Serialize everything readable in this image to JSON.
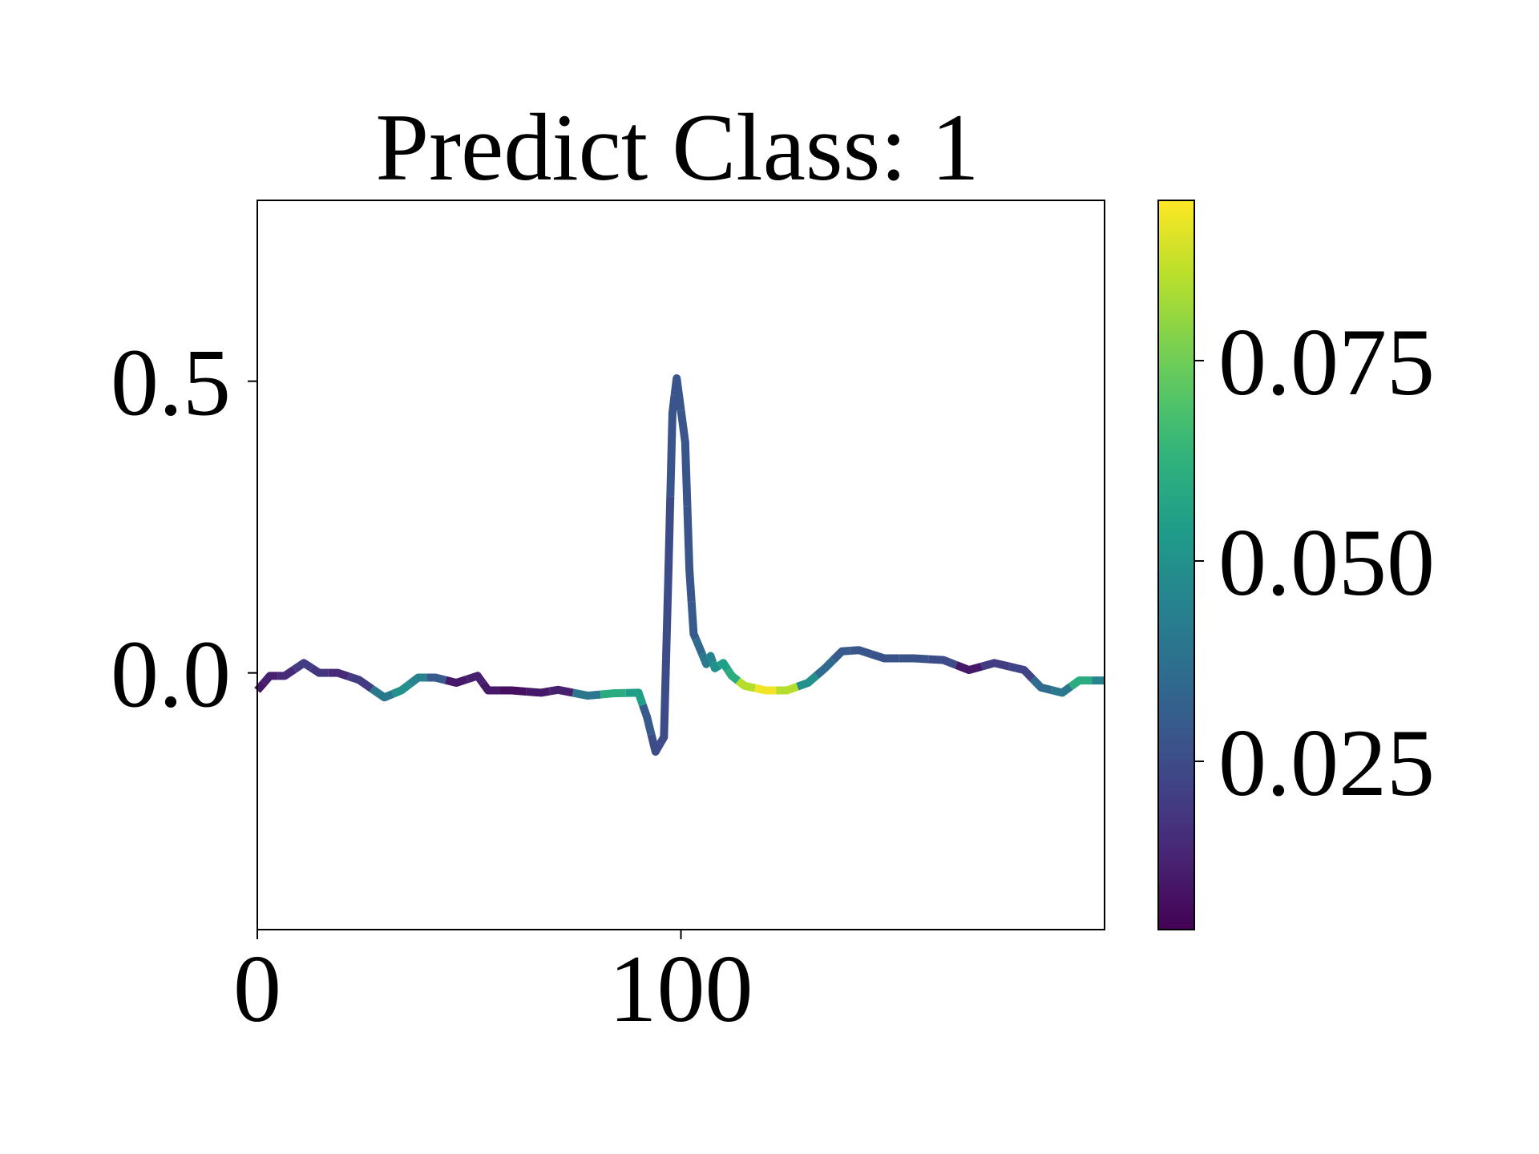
{
  "chart_data": {
    "type": "line",
    "title": "Predict Class: 1",
    "x": [
      0,
      3,
      6.5,
      11,
      14.6,
      19,
      24,
      30,
      34,
      38,
      42,
      47,
      52,
      54.5,
      60,
      67,
      71,
      78,
      84,
      90,
      92,
      94,
      96,
      97,
      98,
      99,
      101,
      102,
      103,
      104,
      106,
      107,
      108,
      110,
      112,
      115,
      120,
      125,
      130,
      134,
      138,
      142,
      148,
      155,
      162,
      168,
      174,
      181,
      185,
      190,
      194,
      200
    ],
    "series": [
      {
        "values": [
          -0.03,
          -0.005,
          -0.005,
          0.017,
          0,
          0,
          -0.012,
          -0.042,
          -0.03,
          -0.008,
          -0.008,
          -0.017,
          -0.005,
          -0.03,
          -0.03,
          -0.034,
          -0.029,
          -0.039,
          -0.035,
          -0.034,
          -0.076,
          -0.135,
          -0.11,
          0.16,
          0.446,
          0.505,
          0.396,
          0.177,
          0.067,
          0.05,
          0.015,
          0.029,
          0.008,
          0.017,
          -0.005,
          -0.022,
          -0.03,
          -0.03,
          -0.017,
          0.008,
          0.037,
          0.039,
          0.025,
          0.025,
          0.022,
          0.005,
          0.017,
          0.005,
          -0.025,
          -0.034,
          -0.013,
          -0.013
        ],
        "color_values": [
          0.01,
          0.012,
          0.015,
          0.02,
          0.018,
          0.015,
          0.02,
          0.04,
          0.05,
          0.045,
          0.03,
          0.01,
          0.012,
          0.01,
          0.008,
          0.01,
          0.012,
          0.04,
          0.06,
          0.055,
          0.03,
          0.025,
          0.025,
          0.025,
          0.028,
          0.028,
          0.028,
          0.028,
          0.03,
          0.035,
          0.04,
          0.045,
          0.05,
          0.055,
          0.06,
          0.085,
          0.093,
          0.085,
          0.05,
          0.035,
          0.03,
          0.028,
          0.027,
          0.027,
          0.025,
          0.01,
          0.02,
          0.022,
          0.035,
          0.04,
          0.06,
          0.045
        ]
      }
    ],
    "colormap": "viridis",
    "xlim": [
      0,
      200
    ],
    "xticks": [
      0,
      100
    ],
    "ylim": [
      -0.44,
      0.81
    ],
    "yticks": [
      {
        "value": 0,
        "label": "0.0"
      },
      0.5
    ],
    "clim": [
      0.004,
      0.095
    ],
    "cticks": [
      0.025,
      {
        "value": 0.05,
        "label": "0.050"
      },
      0.075
    ]
  }
}
